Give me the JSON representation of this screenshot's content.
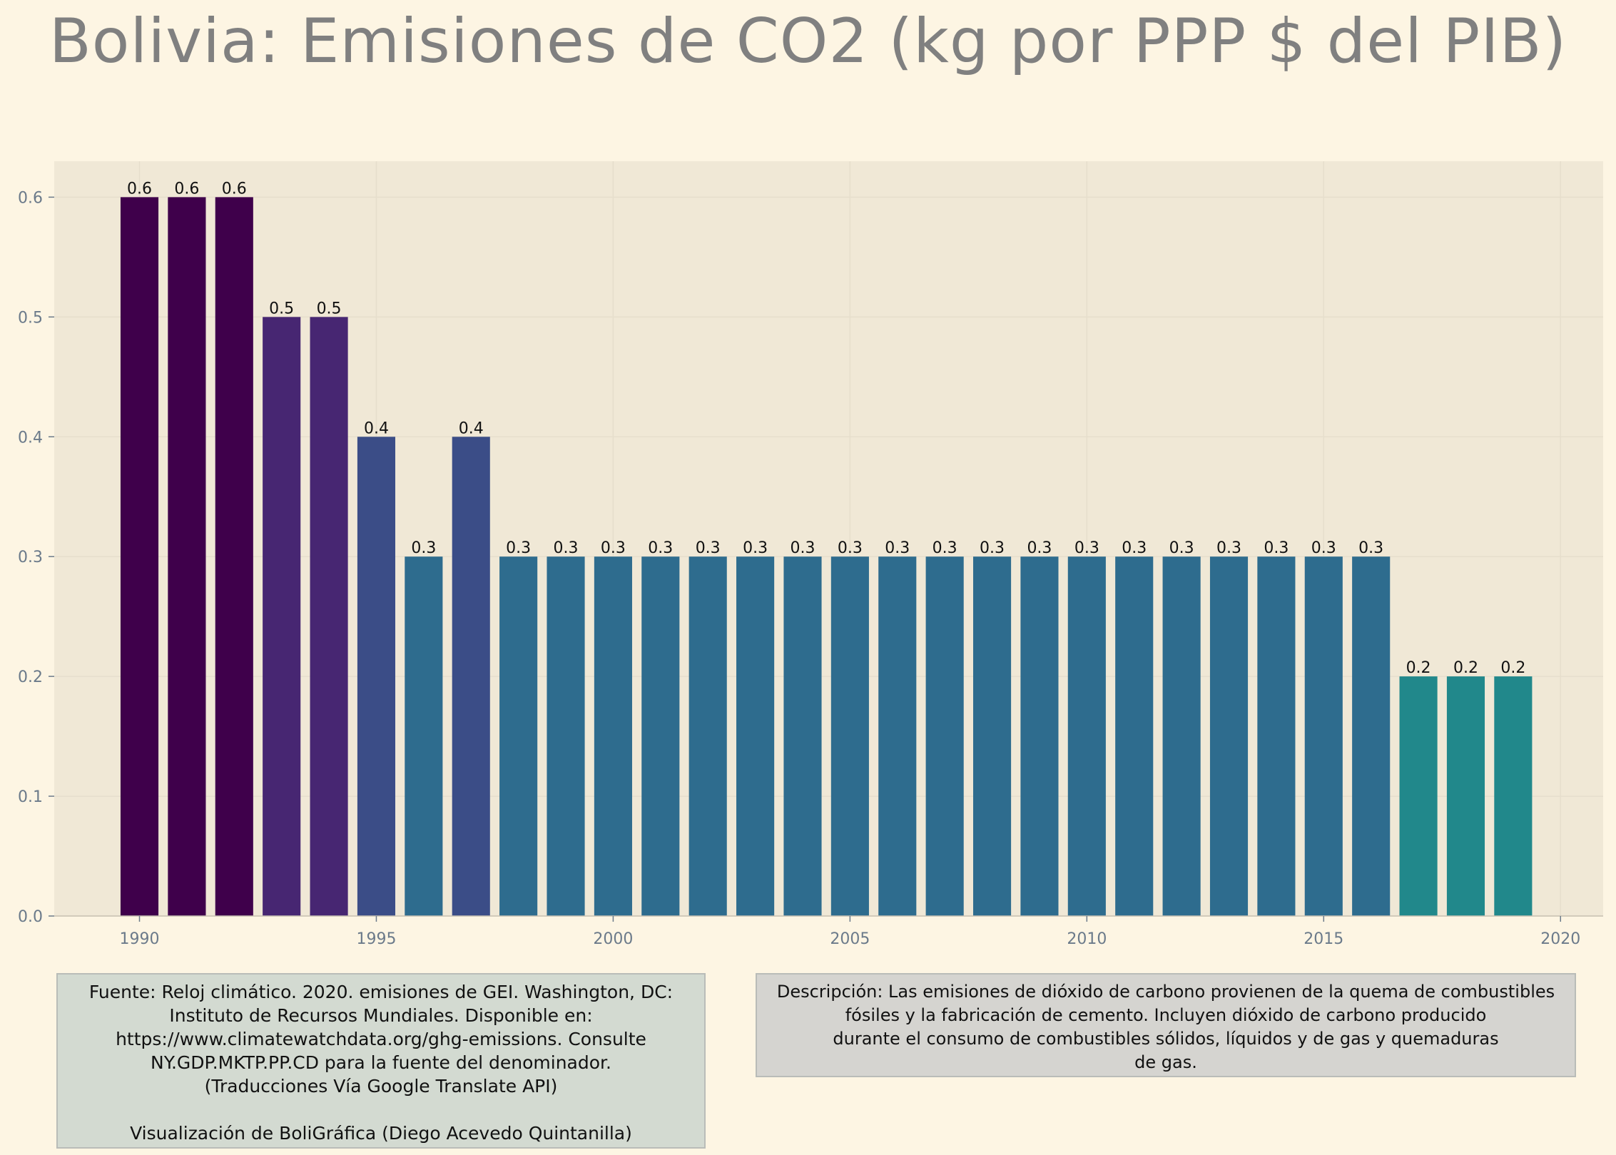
{
  "title": "Bolivia:  Emisiones de CO2 (kg por PPP $ del PIB)",
  "source_text": "Fuente: Reloj climático. 2020. emisiones de GEI. Washington, DC:\nInstituto de Recursos Mundiales. Disponible en:\nhttps://www.climatewatchdata.org/ghg-emissions. Consulte\nNY.GDP.MKTP.PP.CD para la fuente del denominador.\n(Traducciones Vía Google Translate API)\n\nVisualización de BoliGráfica (Diego Acevedo Quintanilla)",
  "description_text": "Descripción: Las emisiones de dióxido de carbono provienen de la quema de combustibles\nfósiles y la fabricación de cemento. Incluyen dióxido de carbono producido\ndurante el consumo de combustibles sólidos, líquidos y de gas y quemaduras\nde gas.",
  "colors": {
    "background": "#fdf5e3",
    "plot_background": "#f0e8d6",
    "grid": "#e6decc",
    "axis_text": "#6b7a8a"
  },
  "chart_data": {
    "type": "bar",
    "x": [
      1990,
      1991,
      1992,
      1993,
      1994,
      1995,
      1996,
      1997,
      1998,
      1999,
      2000,
      2001,
      2002,
      2003,
      2004,
      2005,
      2006,
      2007,
      2008,
      2009,
      2010,
      2011,
      2012,
      2013,
      2014,
      2015,
      2016,
      2017,
      2018,
      2019
    ],
    "values": [
      0.6,
      0.6,
      0.6,
      0.5,
      0.5,
      0.4,
      0.3,
      0.4,
      0.3,
      0.3,
      0.3,
      0.3,
      0.3,
      0.3,
      0.3,
      0.3,
      0.3,
      0.3,
      0.3,
      0.3,
      0.3,
      0.3,
      0.3,
      0.3,
      0.3,
      0.3,
      0.3,
      0.2,
      0.2,
      0.2
    ],
    "data_labels": [
      "0.6",
      "0.6",
      "0.6",
      "0.5",
      "0.5",
      "0.4",
      "0.3",
      "0.4",
      "0.3",
      "0.3",
      "0.3",
      "0.3",
      "0.3",
      "0.3",
      "0.3",
      "0.3",
      "0.3",
      "0.3",
      "0.3",
      "0.3",
      "0.3",
      "0.3",
      "0.3",
      "0.3",
      "0.3",
      "0.3",
      "0.3",
      "0.2",
      "0.2",
      "0.2"
    ],
    "bar_colors_by_value": {
      "0.6": "#3f004b",
      "0.5": "#472672",
      "0.4": "#3b4d87",
      "0.3": "#2e6c8e",
      "0.2": "#21888b"
    },
    "xticks": [
      1990,
      1995,
      2000,
      2005,
      2010,
      2015,
      2020
    ],
    "yticks": [
      "0.0",
      "0.1",
      "0.2",
      "0.3",
      "0.4",
      "0.5",
      "0.6"
    ],
    "xlim": [
      1988.2,
      2020.9
    ],
    "ylim": [
      0,
      0.63
    ],
    "grid": true,
    "title": "Bolivia:  Emisiones de CO2 (kg por PPP $ del PIB)",
    "xlabel": "",
    "ylabel": ""
  }
}
